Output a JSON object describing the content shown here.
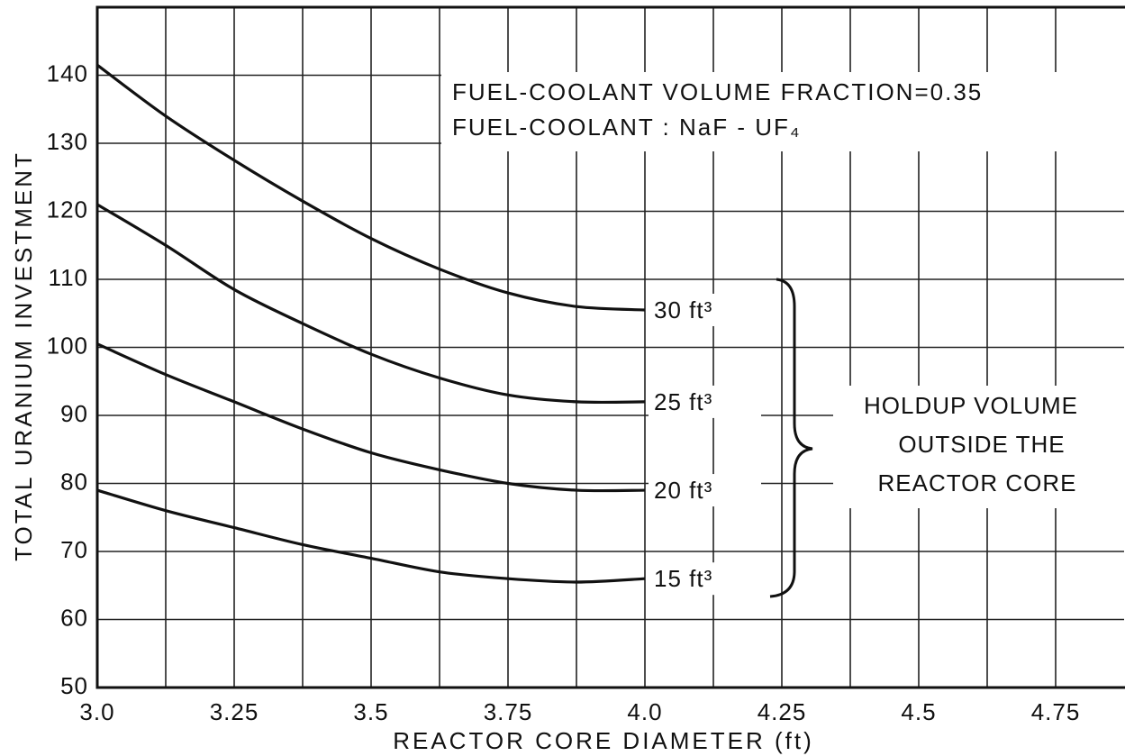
{
  "chart_data": {
    "type": "line",
    "xlabel": "REACTOR CORE DIAMETER (ft)",
    "ylabel": "TOTAL URANIUM INVESTMENT",
    "annotations": [
      "FUEL-COOLANT  VOLUME FRACTION=0.35",
      "FUEL-COOLANT : NaF - UF₄"
    ],
    "bracket_label": [
      "HOLDUP  VOLUME",
      "OUTSIDE  THE",
      "REACTOR  CORE"
    ],
    "x": [
      3.0,
      3.125,
      3.25,
      3.375,
      3.5,
      3.625,
      3.75,
      3.875,
      4.0
    ],
    "series": [
      {
        "name": "30 ft³",
        "color": "#111111",
        "values": [
          141.5,
          134,
          127.5,
          121.5,
          116,
          111.5,
          108,
          106,
          105.5
        ]
      },
      {
        "name": "25 ft³",
        "color": "#111111",
        "values": [
          121,
          115,
          108.5,
          103.5,
          99,
          95.5,
          93,
          92,
          92
        ]
      },
      {
        "name": "20 ft³",
        "color": "#111111",
        "values": [
          100.5,
          96,
          92,
          88,
          84.5,
          82,
          80,
          79,
          79
        ]
      },
      {
        "name": "15 ft³",
        "color": "#111111",
        "values": [
          79,
          76,
          73.5,
          71,
          69,
          67,
          66,
          65.5,
          66
        ]
      }
    ],
    "xlim": [
      3.0,
      4.875
    ],
    "ylim": [
      50,
      150
    ],
    "xticks": [
      {
        "value": 3.0,
        "label": "3.0"
      },
      3.25,
      3.5,
      3.75,
      {
        "value": 4.0,
        "label": "4.0"
      },
      4.25,
      4.5,
      4.75
    ],
    "x_minor_ticks": [
      3.125,
      3.375,
      3.625,
      3.875,
      4.125,
      4.375,
      4.625
    ],
    "yticks": [
      50,
      60,
      70,
      80,
      90,
      100,
      110,
      120,
      130,
      140
    ],
    "grid": true
  }
}
